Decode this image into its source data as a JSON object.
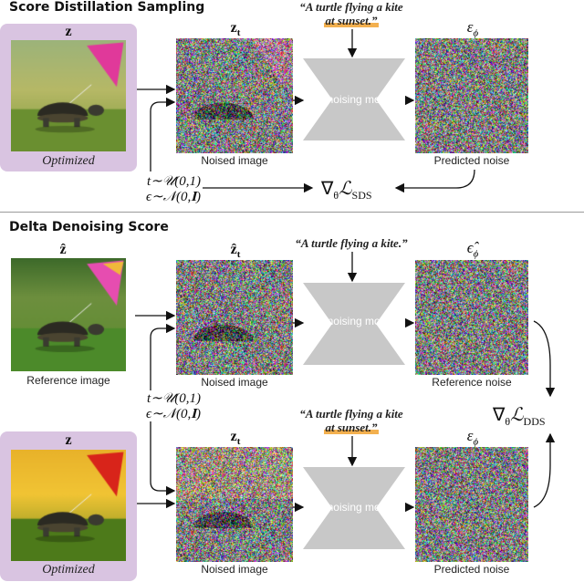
{
  "sds": {
    "title": "Score Distillation Sampling",
    "z_label": "z",
    "zt_label": "z",
    "zt_sub": "t",
    "eps_label": "ε",
    "eps_sub": "ϕ",
    "prompt_line1": "“A turtle flying a kite",
    "prompt_line2": "at sunset.”",
    "model_label": "Denoising model",
    "input_caption": "Optimized",
    "noised_caption": "Noised image",
    "pred_caption": "Predicted noise",
    "t_dist": "t∼𝒰(0,1)",
    "eps_dist": "ϵ∼𝒩(0,𝐈)",
    "loss": "∇",
    "loss_theta": "θ",
    "loss_L": "ℒ",
    "loss_sub": "SDS"
  },
  "dds": {
    "title": "Delta Denoising Score",
    "zhat_label": "ẑ",
    "zhat_t_label": "ẑ",
    "zhat_t_sub": "t",
    "epshat_label": "ϵ̂",
    "epshat_sub": "ϕ",
    "ref_prompt": "“A turtle flying a kite.”",
    "ref_caption": "Reference image",
    "ref_noised_caption": "Noised image",
    "ref_noise_caption": "Reference noise",
    "model_label": "Denoising model",
    "t_dist": "t∼𝒰(0,1)",
    "eps_dist": "ϵ∼𝒩(0,𝐈)",
    "z_label": "z",
    "zt_label": "z",
    "zt_sub": "t",
    "eps_label": "ε",
    "eps_sub": "ϕ",
    "prompt_line1": "“A turtle flying a kite",
    "prompt_line2": "at sunset.”",
    "input_caption": "Optimized",
    "noised_caption": "Noised image",
    "pred_caption": "Predicted noise",
    "loss": "∇",
    "loss_theta": "θ",
    "loss_L": "ℒ",
    "loss_sub": "DDS"
  },
  "colors": {
    "panel": "#d9c4e1",
    "highlight": "#f3b04f",
    "model": "#c8c8c8",
    "kite_pink": "#e0399a",
    "kite_red": "#d8241a"
  }
}
